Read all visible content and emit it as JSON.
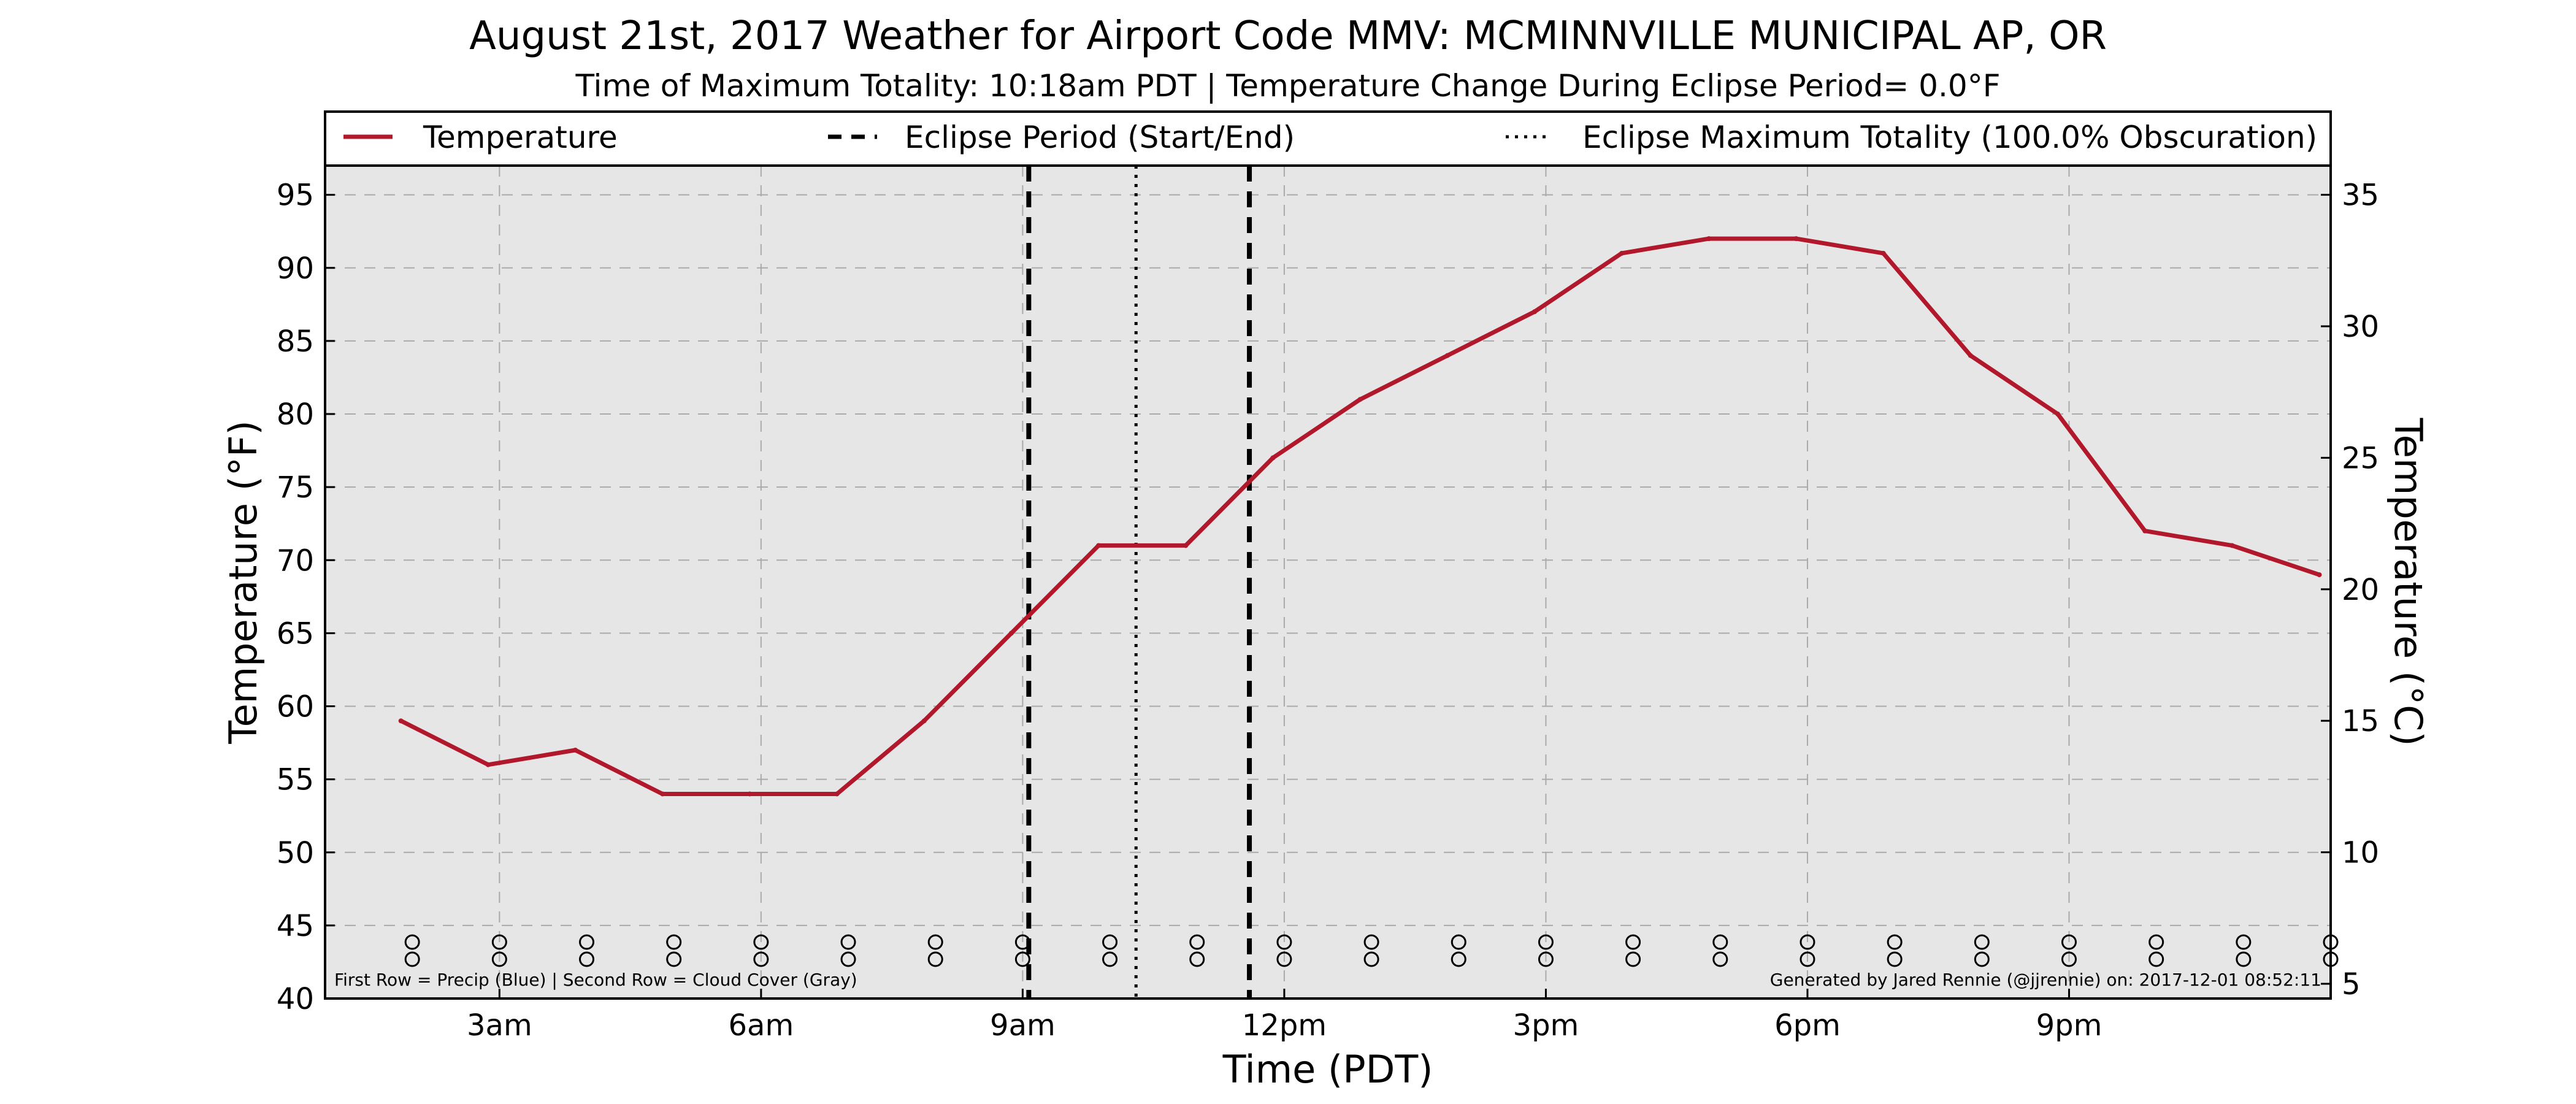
{
  "chart_data": {
    "type": "line",
    "title": "August 21st, 2017 Weather for Airport Code MMV: MCMINNVILLE MUNICIPAL AP, OR",
    "subtitle": "Time of Maximum Totality: 10:18am PDT | Temperature Change During Eclipse Period= 0.0°F",
    "xlabel": "Time (PDT)",
    "ylabel": "Temperature (°F)",
    "y2label": "Temperature (°C)",
    "xlim": [
      1.0,
      24.0
    ],
    "ylim": [
      40,
      97
    ],
    "y2lim": [
      4.44,
      36.11
    ],
    "x_ticks": [
      {
        "x": 3,
        "label": "3am"
      },
      {
        "x": 6,
        "label": "6am"
      },
      {
        "x": 9,
        "label": "9am"
      },
      {
        "x": 12,
        "label": "12pm"
      },
      {
        "x": 15,
        "label": "3pm"
      },
      {
        "x": 18,
        "label": "6pm"
      },
      {
        "x": 21,
        "label": "9pm"
      }
    ],
    "y_ticks": [
      40,
      45,
      50,
      55,
      60,
      65,
      70,
      75,
      80,
      85,
      90,
      95
    ],
    "y2_ticks": [
      5,
      10,
      15,
      20,
      25,
      30,
      35
    ],
    "grid": true,
    "legend_position": "top",
    "legend": [
      {
        "label": "Temperature",
        "style": "solid",
        "color": "#b2182b"
      },
      {
        "label": "Eclipse Period (Start/End)",
        "style": "dashed",
        "color": "#000000"
      },
      {
        "label": "Eclipse Maximum Totality (100.0% Obscuration)",
        "style": "dotted",
        "color": "#000000"
      }
    ],
    "series": [
      {
        "name": "Temperature",
        "color": "#b2182b",
        "x": [
          1.87,
          2.87,
          3.87,
          4.87,
          5.87,
          6.87,
          7.87,
          8.87,
          9.87,
          10.87,
          11.87,
          12.87,
          13.87,
          14.87,
          15.87,
          16.87,
          17.87,
          18.87,
          19.87,
          20.87,
          21.87,
          22.87,
          23.87
        ],
        "y": [
          59,
          56,
          57,
          54,
          54,
          54,
          59,
          65,
          71,
          71,
          77,
          81,
          84,
          87,
          91,
          92,
          92,
          91,
          84,
          80,
          72,
          71,
          69
        ]
      }
    ],
    "eclipse_start": 9.07,
    "eclipse_max": 10.3,
    "eclipse_end": 11.6,
    "marker_hours": [
      2,
      3,
      4,
      5,
      6,
      7,
      8,
      9,
      10,
      11,
      12,
      13,
      14,
      15,
      16,
      17,
      18,
      19,
      20,
      21,
      22,
      23,
      24
    ],
    "footnote_left": "First Row = Precip (Blue) | Second Row = Cloud Cover (Gray)",
    "footnote_right": "Generated by Jared Rennie (@jjrennie) on: 2017-12-01 08:52:11",
    "colors": {
      "plot_bg": "#e6e6e6",
      "grid": "#aaaaaa",
      "line": "#b2182b"
    }
  }
}
